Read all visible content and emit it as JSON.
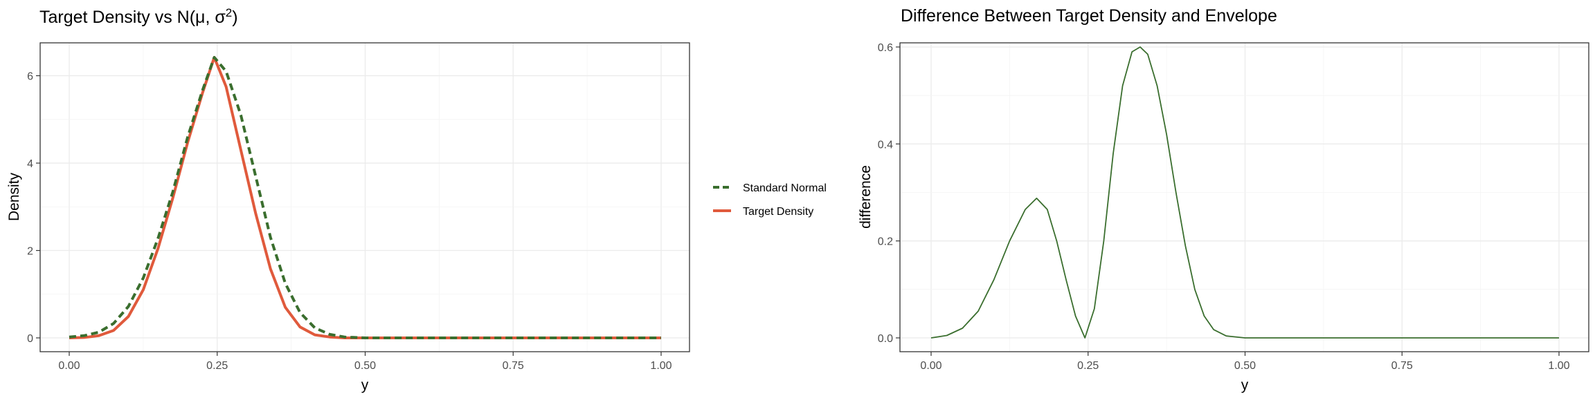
{
  "chart_data": [
    {
      "type": "line",
      "title": "Target Density vs N(μ, σ²)",
      "title_parts": {
        "prefix": "Target Density vs N(μ, σ",
        "sup": "2",
        "suffix": ")"
      },
      "xlabel": "y",
      "ylabel": "Density",
      "xlim": [
        0,
        1
      ],
      "ylim": [
        0,
        6.42
      ],
      "x_ticks": [
        "0.00",
        "0.25",
        "0.50",
        "0.75",
        "1.00"
      ],
      "y_ticks": [
        "0",
        "2",
        "4",
        "6"
      ],
      "grid": true,
      "legend_position": "right",
      "series": [
        {
          "name": "Standard Normal",
          "color": "#3a6e2e",
          "style": "dashed",
          "x": [
            0.0,
            0.025,
            0.05,
            0.075,
            0.1,
            0.125,
            0.15,
            0.175,
            0.2,
            0.225,
            0.245,
            0.265,
            0.29,
            0.315,
            0.34,
            0.365,
            0.39,
            0.415,
            0.44,
            0.465,
            0.5,
            0.6,
            0.7,
            0.8,
            0.9,
            1.0
          ],
          "values": [
            0.02,
            0.05,
            0.13,
            0.33,
            0.72,
            1.37,
            2.28,
            3.34,
            4.59,
            5.66,
            6.42,
            6.1,
            5.1,
            3.7,
            2.3,
            1.25,
            0.58,
            0.23,
            0.08,
            0.02,
            0.0,
            0.0,
            0.0,
            0.0,
            0.0,
            0.0
          ]
        },
        {
          "name": "Target Density",
          "color": "#e05a3c",
          "style": "solid",
          "x": [
            0.0,
            0.025,
            0.05,
            0.075,
            0.1,
            0.125,
            0.15,
            0.175,
            0.2,
            0.225,
            0.245,
            0.265,
            0.29,
            0.315,
            0.34,
            0.365,
            0.39,
            0.415,
            0.44,
            0.465,
            0.5,
            0.6,
            0.7,
            0.8,
            0.9,
            1.0
          ],
          "values": [
            0.0,
            0.01,
            0.05,
            0.17,
            0.49,
            1.1,
            2.05,
            3.2,
            4.47,
            5.6,
            6.42,
            5.75,
            4.3,
            2.85,
            1.58,
            0.7,
            0.25,
            0.07,
            0.02,
            0.0,
            0.0,
            0.0,
            0.0,
            0.0,
            0.0,
            0.0
          ]
        }
      ]
    },
    {
      "type": "line",
      "title": "Difference Between Target Density and Envelope",
      "xlabel": "y",
      "ylabel": "difference",
      "xlim": [
        0,
        1
      ],
      "ylim": [
        0,
        0.6
      ],
      "x_ticks": [
        "0.00",
        "0.25",
        "0.50",
        "0.75",
        "1.00"
      ],
      "y_ticks": [
        "0.0",
        "0.2",
        "0.4",
        "0.6"
      ],
      "grid": true,
      "series": [
        {
          "color": "#3a6e2e",
          "style": "solid",
          "x": [
            0.0,
            0.025,
            0.05,
            0.075,
            0.1,
            0.125,
            0.15,
            0.168,
            0.185,
            0.2,
            0.215,
            0.23,
            0.245,
            0.26,
            0.275,
            0.29,
            0.305,
            0.32,
            0.333,
            0.345,
            0.36,
            0.375,
            0.39,
            0.405,
            0.42,
            0.435,
            0.45,
            0.47,
            0.5,
            0.6,
            0.7,
            0.8,
            0.9,
            1.0
          ],
          "values": [
            0.0,
            0.005,
            0.02,
            0.055,
            0.12,
            0.2,
            0.265,
            0.288,
            0.265,
            0.2,
            0.12,
            0.045,
            0.0,
            0.06,
            0.2,
            0.38,
            0.52,
            0.59,
            0.6,
            0.585,
            0.52,
            0.42,
            0.3,
            0.19,
            0.1,
            0.045,
            0.017,
            0.004,
            0.0,
            0.0,
            0.0,
            0.0,
            0.0,
            0.0
          ]
        }
      ]
    }
  ]
}
